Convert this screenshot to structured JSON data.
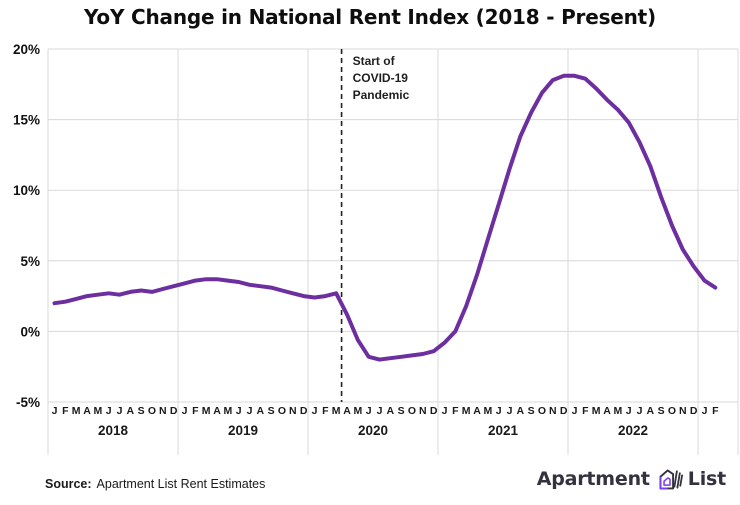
{
  "title": "YoY Change in National Rent Index (2018 - Present)",
  "footer": {
    "source_label": "Source:",
    "source_text": "Apartment List Rent Estimates"
  },
  "logo": {
    "word1": "Apartment",
    "word2": "List",
    "icon": "apartment-list-door-icon",
    "text_color": "#34323f",
    "accent_color": "#7a3ff2"
  },
  "chart_data": {
    "type": "line",
    "title": "YoY Change in National Rent Index (2018 - Present)",
    "xlabel": "",
    "ylabel": "",
    "ylim": [
      -5,
      20
    ],
    "grid": "on",
    "legend_position": "none",
    "y_ticks": [
      "20%",
      "15%",
      "10%",
      "5%",
      "0%",
      "-5%"
    ],
    "y_tick_values": [
      20,
      15,
      10,
      5,
      0,
      -5
    ],
    "month_letters": "JFMAMJJASOND",
    "years": [
      "2018",
      "2019",
      "2020",
      "2021",
      "2022"
    ],
    "trailing_months": [
      "J",
      "F"
    ],
    "annotation": {
      "lines": [
        "Start of",
        "COVID-19",
        "Pandemic"
      ],
      "at_month": "2020-04",
      "style": "dashed-vertical-line"
    },
    "colors": {
      "line": "#6d2fa0",
      "grid": "#d8d8d8",
      "dashed_line": "#222222",
      "text": "#111111"
    },
    "x": [
      "2018-01",
      "2018-02",
      "2018-03",
      "2018-04",
      "2018-05",
      "2018-06",
      "2018-07",
      "2018-08",
      "2018-09",
      "2018-10",
      "2018-11",
      "2018-12",
      "2019-01",
      "2019-02",
      "2019-03",
      "2019-04",
      "2019-05",
      "2019-06",
      "2019-07",
      "2019-08",
      "2019-09",
      "2019-10",
      "2019-11",
      "2019-12",
      "2020-01",
      "2020-02",
      "2020-03",
      "2020-04",
      "2020-05",
      "2020-06",
      "2020-07",
      "2020-08",
      "2020-09",
      "2020-10",
      "2020-11",
      "2020-12",
      "2021-01",
      "2021-02",
      "2021-03",
      "2021-04",
      "2021-05",
      "2021-06",
      "2021-07",
      "2021-08",
      "2021-09",
      "2021-10",
      "2021-11",
      "2021-12",
      "2022-01",
      "2022-02",
      "2022-03",
      "2022-04",
      "2022-05",
      "2022-06",
      "2022-07",
      "2022-08",
      "2022-09",
      "2022-10",
      "2022-11",
      "2022-12",
      "2023-01",
      "2023-02"
    ],
    "series": [
      {
        "name": "National Rent Index YoY Change (%)",
        "color": "#6d2fa0",
        "values": [
          2.0,
          2.1,
          2.3,
          2.5,
          2.6,
          2.7,
          2.6,
          2.8,
          2.9,
          2.8,
          3.0,
          3.2,
          3.4,
          3.6,
          3.7,
          3.7,
          3.6,
          3.5,
          3.3,
          3.2,
          3.1,
          2.9,
          2.7,
          2.5,
          2.4,
          2.5,
          2.7,
          1.2,
          -0.6,
          -1.8,
          -2.0,
          -1.9,
          -1.8,
          -1.7,
          -1.6,
          -1.4,
          -0.8,
          0.0,
          1.8,
          4.0,
          6.5,
          9.0,
          11.5,
          13.8,
          15.5,
          16.9,
          17.8,
          18.1,
          18.1,
          17.9,
          17.2,
          16.4,
          15.7,
          14.8,
          13.4,
          11.7,
          9.5,
          7.5,
          5.8,
          4.6,
          3.6,
          3.1
        ]
      }
    ]
  }
}
